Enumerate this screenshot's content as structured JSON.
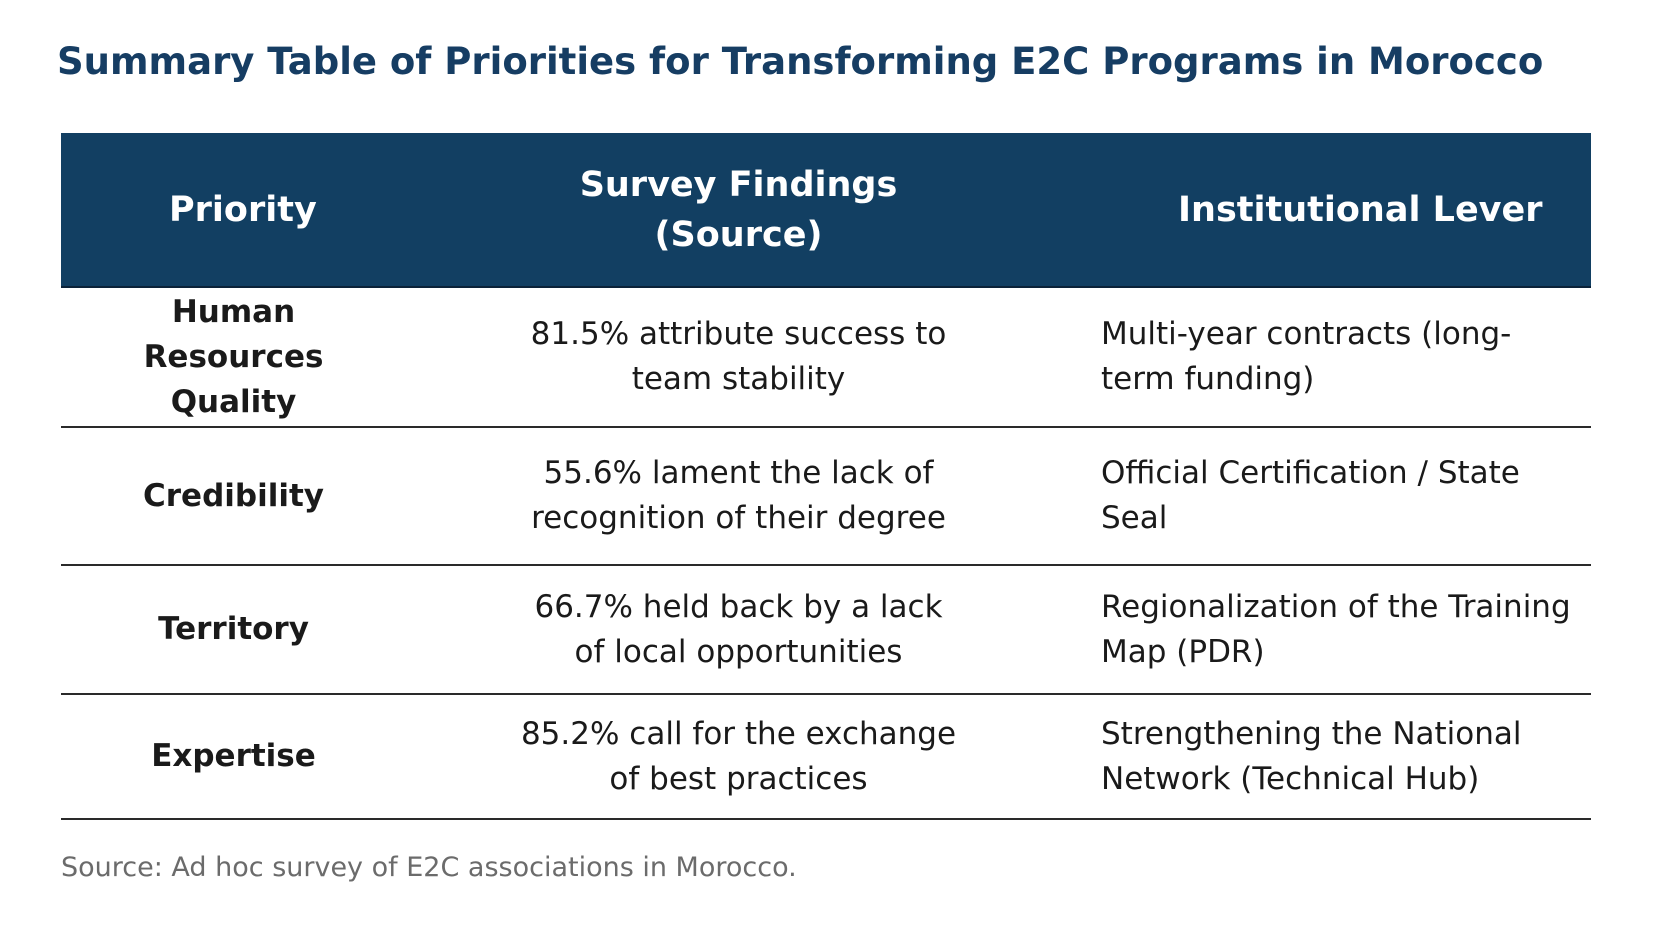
{
  "title": "Summary Table of Priorities for Transforming E2C Programs in Morocco",
  "table": {
    "headers": [
      "Priority",
      "Survey Findings (Source)",
      "Institutional Lever"
    ],
    "header_lines": {
      "findings_line1": "Survey Findings",
      "findings_line2": "(Source)"
    },
    "rows": [
      {
        "priority": "Human Resources Quality",
        "finding": "81.5% attribute success to team stability",
        "lever": "Multi-year contracts (long-term funding)"
      },
      {
        "priority": "Credibility",
        "finding": "55.6% lament the lack of recognition of their degree",
        "lever": "Official Certification / State Seal"
      },
      {
        "priority": "Territory",
        "finding": "66.7% held back by a lack of local opportunities",
        "lever": "Regionalization of the Training Map (PDR)"
      },
      {
        "priority": "Expertise",
        "finding": "85.2% call for the exchange of best practices",
        "lever": "Strengthening the National Network (Technical Hub)"
      }
    ]
  },
  "source_note": "Source: Ad hoc survey of E2C associations in Morocco.",
  "colors": {
    "title": "#163d63",
    "header_background": "#123f62",
    "header_text": "#ffffff",
    "source_text": "#6b6b6b"
  }
}
